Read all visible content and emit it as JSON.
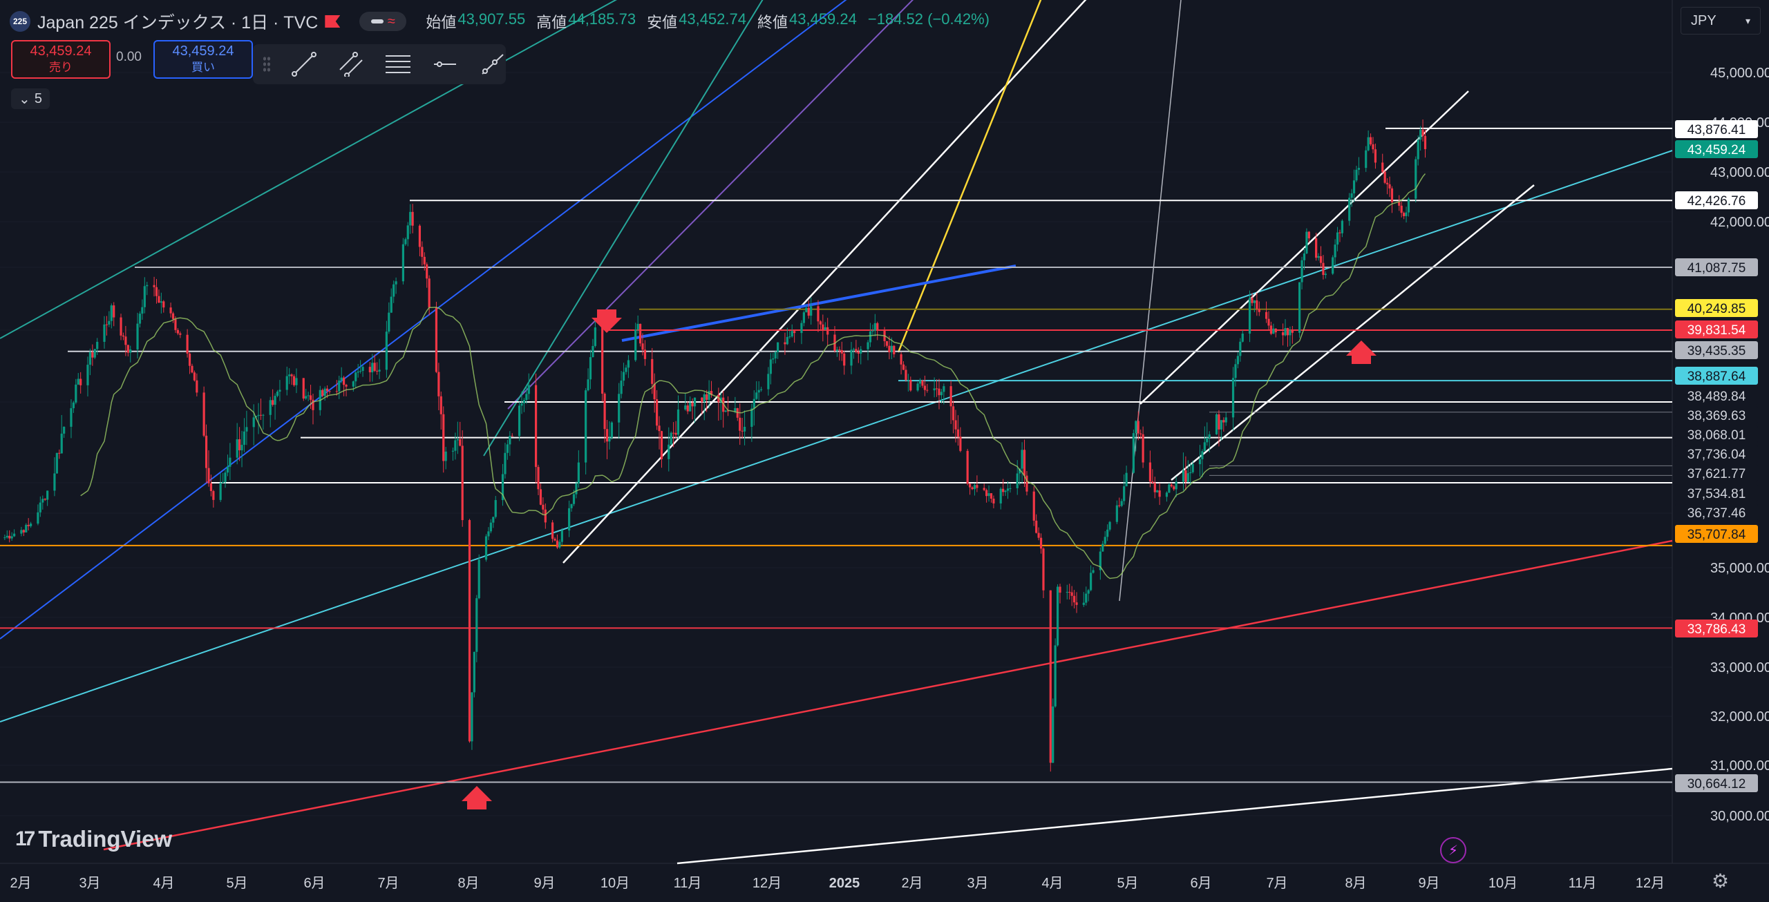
{
  "header": {
    "symbol_badge": "225",
    "title": "Japan 225 インデックス · 1日 · TVC",
    "ohlc": [
      {
        "label": "始値",
        "value": "43,907.55"
      },
      {
        "label": "高値",
        "value": "44,185.73"
      },
      {
        "label": "安値",
        "value": "43,452.74"
      },
      {
        "label": "終値",
        "value": "43,459.24"
      }
    ],
    "change": "−184.52 (−0.42%)"
  },
  "trade": {
    "sell_price": "43,459.24",
    "sell_label": "売り",
    "spread": "0.00",
    "buy_price": "43,459.24",
    "buy_label": "買い"
  },
  "indicators_collapsed_count": "5",
  "currency": "JPY",
  "branding": {
    "logo_text": "TradingView"
  },
  "colors": {
    "background": "#131722",
    "up": "#089981",
    "down": "#f23645",
    "grid": "#1e222d",
    "axis_text": "#d1d4dc"
  },
  "chart_data": {
    "type": "candlestick",
    "y_axis": {
      "range": [
        29400,
        46000
      ],
      "ticks": [
        "45,000.00",
        "44,000.00",
        "43,000.00",
        "42,000.00",
        "35,000.00",
        "34,000.00",
        "33,000.00",
        "32,000.00",
        "31,000.00",
        "30,000.00"
      ]
    },
    "x_axis": {
      "ticks": [
        "2月",
        "3月",
        "4月",
        "5月",
        "6月",
        "7月",
        "8月",
        "9月",
        "10月",
        "11月",
        "12月",
        "2025",
        "2月",
        "3月",
        "4月",
        "5月",
        "6月",
        "7月",
        "8月",
        "9月",
        "10月",
        "11月",
        "12月"
      ],
      "range": [
        "2024-01-20",
        "2025-12-31"
      ]
    },
    "last_price": "43,459.24",
    "price_labels": [
      {
        "value": "43,876.41",
        "style": "white"
      },
      {
        "value": "43,459.24",
        "style": "green"
      },
      {
        "value": "42,426.76",
        "style": "white"
      },
      {
        "value": "41,087.75",
        "style": "gray"
      },
      {
        "value": "40,249.85",
        "style": "yellow"
      },
      {
        "value": "39,831.54",
        "style": "red"
      },
      {
        "value": "39,435.35",
        "style": "gray"
      },
      {
        "value": "38,887.64",
        "style": "cyan"
      },
      {
        "value": "38,489.84",
        "style": "plain"
      },
      {
        "value": "38,369.63",
        "style": "plain"
      },
      {
        "value": "38,068.01",
        "style": "plain"
      },
      {
        "value": "37,736.04",
        "style": "plain"
      },
      {
        "value": "37,621.77",
        "style": "plain"
      },
      {
        "value": "37,534.81",
        "style": "plain"
      },
      {
        "value": "36,737.46",
        "style": "plain"
      },
      {
        "value": "35,707.84",
        "style": "orange"
      },
      {
        "value": "33,786.43",
        "style": "red"
      },
      {
        "value": "30,664.12",
        "style": "gray"
      }
    ],
    "horizontal_levels": [
      43876.41,
      42426.76,
      41087.75,
      40249.85,
      39831.54,
      39435.35,
      38887.64,
      38489.84,
      38068.01,
      37534.81,
      35707.84,
      33786.43,
      30664.12
    ],
    "price_path": [
      [
        "2024-01-20",
        35900
      ],
      [
        "2024-02-01",
        36300
      ],
      [
        "2024-02-15",
        38100
      ],
      [
        "2024-03-01",
        39600
      ],
      [
        "2024-03-07",
        40200
      ],
      [
        "2024-03-15",
        39400
      ],
      [
        "2024-03-22",
        40800
      ],
      [
        "2024-04-01",
        40100
      ],
      [
        "2024-04-08",
        39500
      ],
      [
        "2024-04-19",
        37100
      ],
      [
        "2024-04-26",
        37900
      ],
      [
        "2024-05-10",
        38300
      ],
      [
        "2024-05-20",
        39000
      ],
      [
        "2024-05-31",
        38500
      ],
      [
        "2024-06-14",
        38900
      ],
      [
        "2024-06-28",
        39200
      ],
      [
        "2024-07-05",
        40900
      ],
      [
        "2024-07-11",
        42200
      ],
      [
        "2024-07-17",
        41200
      ],
      [
        "2024-07-25",
        37900
      ],
      [
        "2024-08-01",
        38100
      ],
      [
        "2024-08-05",
        31500
      ],
      [
        "2024-08-09",
        35200
      ],
      [
        "2024-08-20",
        38000
      ],
      [
        "2024-08-30",
        38700
      ],
      [
        "2024-09-06",
        36400
      ],
      [
        "2024-09-11",
        35600
      ],
      [
        "2024-09-20",
        37700
      ],
      [
        "2024-09-27",
        39800
      ],
      [
        "2024-10-02",
        37900
      ],
      [
        "2024-10-15",
        39900
      ],
      [
        "2024-10-25",
        37900
      ],
      [
        "2024-11-05",
        38500
      ],
      [
        "2024-11-15",
        38600
      ],
      [
        "2024-11-29",
        38200
      ],
      [
        "2024-12-13",
        39500
      ],
      [
        "2024-12-27",
        40300
      ],
      [
        "2025-01-10",
        39200
      ],
      [
        "2025-01-24",
        39900
      ],
      [
        "2025-02-07",
        38800
      ],
      [
        "2025-02-21",
        38700
      ],
      [
        "2025-03-05",
        37400
      ],
      [
        "2025-03-14",
        37100
      ],
      [
        "2025-03-26",
        37800
      ],
      [
        "2025-04-03",
        35700
      ],
      [
        "2025-04-07",
        31100
      ],
      [
        "2025-04-10",
        34600
      ],
      [
        "2025-04-21",
        34300
      ],
      [
        "2025-04-30",
        36000
      ],
      [
        "2025-05-13",
        38200
      ],
      [
        "2025-05-23",
        37200
      ],
      [
        "2025-06-06",
        37800
      ],
      [
        "2025-06-20",
        38400
      ],
      [
        "2025-06-30",
        40500
      ],
      [
        "2025-07-09",
        39800
      ],
      [
        "2025-07-18",
        39800
      ],
      [
        "2025-07-24",
        41800
      ],
      [
        "2025-08-01",
        40900
      ],
      [
        "2025-08-12",
        42700
      ],
      [
        "2025-08-19",
        43700
      ],
      [
        "2025-08-26",
        42800
      ],
      [
        "2025-09-03",
        42000
      ],
      [
        "2025-09-10",
        43800
      ],
      [
        "2025-09-12",
        43459
      ]
    ]
  }
}
